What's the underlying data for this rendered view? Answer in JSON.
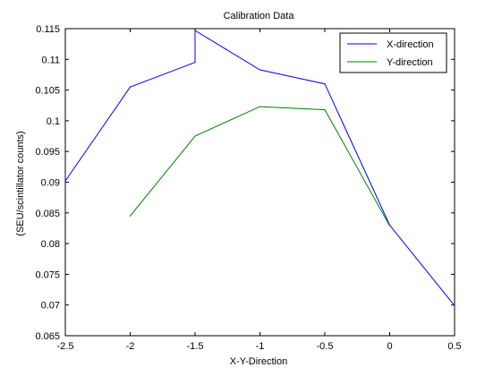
{
  "chart_data": {
    "type": "line",
    "title": "Calibration Data",
    "xlabel": "X-Y-Direction",
    "ylabel": "(SEU/scintillator counts)",
    "xlim": [
      -2.5,
      0.5
    ],
    "ylim": [
      0.065,
      0.115
    ],
    "xticks": [
      -2.5,
      -2,
      -1.5,
      -1,
      -0.5,
      0,
      0.5
    ],
    "xtick_labels": [
      "-2.5",
      "-2",
      "-1.5",
      "-1",
      "-0.5",
      "0",
      "0.5"
    ],
    "yticks": [
      0.065,
      0.07,
      0.075,
      0.08,
      0.085,
      0.09,
      0.095,
      0.1,
      0.105,
      0.11,
      0.115
    ],
    "ytick_labels": [
      "0.065",
      "0.07",
      "0.075",
      "0.08",
      "0.085",
      "0.09",
      "0.095",
      "0.1",
      "0.105",
      "0.11",
      "0.115"
    ],
    "grid": false,
    "legend_position": "top-right",
    "series": [
      {
        "name": "X-direction",
        "color": "#0000ff",
        "x": [
          -2.5,
          -2,
          -1.5,
          -1.5,
          -1,
          -0.5,
          0,
          0.5
        ],
        "y": [
          0.0902,
          0.1055,
          0.1095,
          0.1147,
          0.1083,
          0.106,
          0.083,
          0.0699
        ]
      },
      {
        "name": "Y-direction",
        "color": "#008000",
        "x": [
          -2,
          -1.5,
          -1,
          -0.5,
          0
        ],
        "y": [
          0.0845,
          0.0975,
          0.1023,
          0.1018,
          0.0829
        ]
      }
    ]
  }
}
